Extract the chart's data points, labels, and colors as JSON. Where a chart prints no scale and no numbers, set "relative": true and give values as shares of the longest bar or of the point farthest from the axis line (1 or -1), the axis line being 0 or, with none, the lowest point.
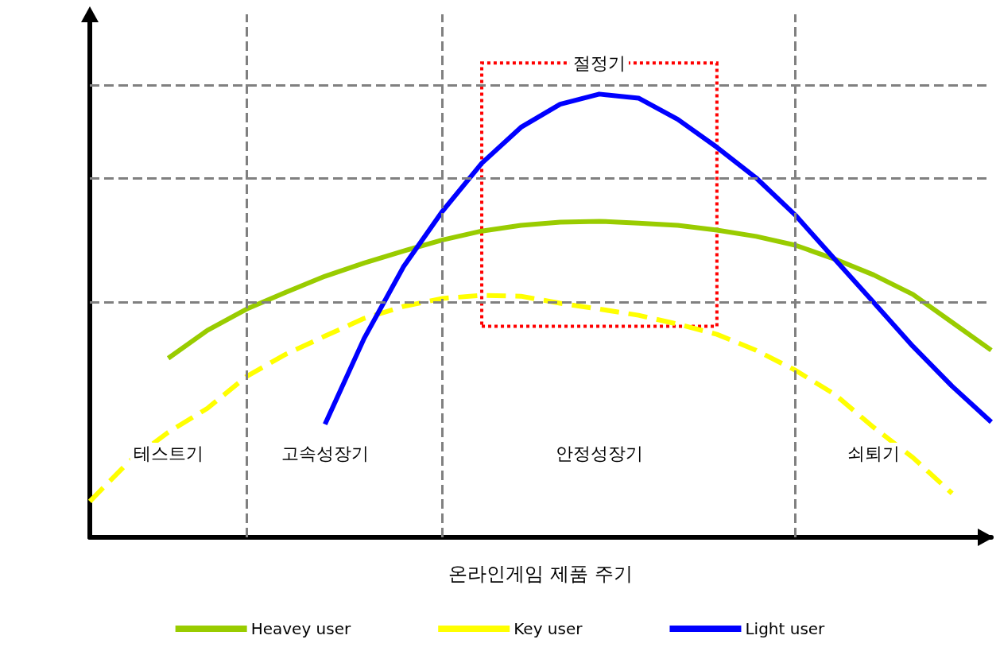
{
  "chart_data": {
    "type": "line",
    "relative": true,
    "xlabel": "온라인게임 제품 주기",
    "legend": "bottom",
    "marker": "none",
    "grid": "x",
    "categories": [
      null,
      null,
      null,
      null,
      null,
      null,
      null,
      null,
      null,
      null,
      null,
      null,
      null,
      null,
      null,
      null,
      null,
      null,
      null,
      null,
      null,
      null,
      null,
      null
    ],
    "series": [
      {
        "name": "Heavey user",
        "color": "#99cc00",
        "line_style": "solid",
        "values": [
          null,
          null,
          0.404,
          0.467,
          0.515,
          0.553,
          0.589,
          0.619,
          0.646,
          0.671,
          0.691,
          0.704,
          0.711,
          0.713,
          0.709,
          0.704,
          0.693,
          0.679,
          0.659,
          0.628,
          0.592,
          0.548,
          0.485,
          0.422
        ]
      },
      {
        "name": "Key user",
        "color": "#ffff00",
        "line_style": "dashed",
        "values": [
          0.081,
          0.171,
          0.237,
          0.291,
          0.363,
          0.413,
          0.454,
          0.494,
          0.521,
          0.539,
          0.546,
          0.544,
          0.528,
          0.515,
          0.501,
          0.481,
          0.458,
          0.422,
          0.377,
          0.323,
          0.248,
          0.18,
          0.099,
          null
        ]
      },
      {
        "name": "Light user",
        "color": "#0000ff",
        "line_style": "solid",
        "values": [
          null,
          null,
          null,
          null,
          null,
          null,
          0.255,
          0.449,
          0.61,
          0.736,
          0.844,
          0.925,
          0.977,
          1,
          0.991,
          0.943,
          0.88,
          0.811,
          0.727,
          0.628,
          0.53,
          0.431,
          0.341,
          0.26
        ]
      }
    ],
    "ref_lines": [
      {
        "axis": "y",
        "value": 1.02,
        "label": null,
        "color": "#808080",
        "line_style": "dashed"
      },
      {
        "axis": "y",
        "value": 0.81,
        "label": null,
        "color": "#808080",
        "line_style": "dashed"
      },
      {
        "axis": "y",
        "value": 0.53,
        "label": null,
        "color": "#808080",
        "line_style": "dashed"
      }
    ],
    "annotations": [
      "테스트기",
      "고속성장기",
      "안정성장기",
      "쇠퇴기",
      "절정기"
    ]
  }
}
